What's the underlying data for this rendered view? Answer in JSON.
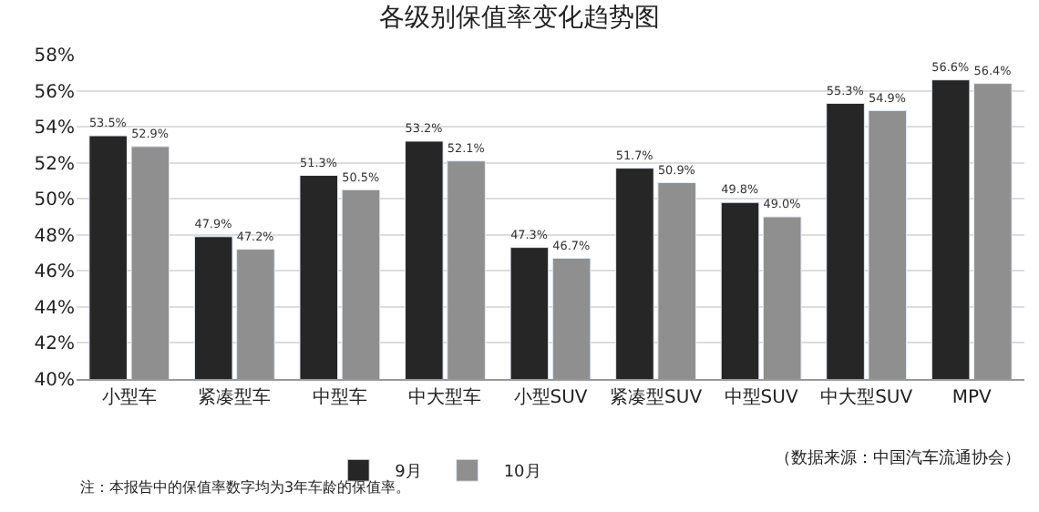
{
  "chart_data": {
    "type": "bar",
    "title": "各级别保值率变化趋势图",
    "categories": [
      "小型车",
      "紧凑型车",
      "中型车",
      "中大型车",
      "小型SUV",
      "紧凑型SUV",
      "中型SUV",
      "中大型SUV",
      "MPV"
    ],
    "series": [
      {
        "name": "9月",
        "color": "#262626",
        "values": [
          53.5,
          47.9,
          51.3,
          53.2,
          47.3,
          51.7,
          49.8,
          55.3,
          56.6
        ],
        "value_labels": [
          "53.5%",
          "47.9%",
          "51.3%",
          "53.2%",
          "47.3%",
          "51.7%",
          "49.8%",
          "55.3%",
          "56.6%"
        ]
      },
      {
        "name": "10月",
        "color": "#8f8f8f",
        "values": [
          52.9,
          47.2,
          50.5,
          52.1,
          46.7,
          50.9,
          49.0,
          54.9,
          56.4
        ],
        "value_labels": [
          "52.9%",
          "47.2%",
          "50.5%",
          "52.1%",
          "46.7%",
          "50.9%",
          "49.0%",
          "54.9%",
          "56.4%"
        ]
      }
    ],
    "ylim": [
      40,
      58
    ],
    "yticks": [
      {
        "value": 40,
        "label": "40%"
      },
      {
        "value": 42,
        "label": "42%"
      },
      {
        "value": 44,
        "label": "44%"
      },
      {
        "value": 46,
        "label": "46%"
      },
      {
        "value": 48,
        "label": "48%"
      },
      {
        "value": 50,
        "label": "50%"
      },
      {
        "value": 52,
        "label": "52%"
      },
      {
        "value": 54,
        "label": "54%"
      },
      {
        "value": 56,
        "label": "56%"
      },
      {
        "value": 58,
        "label": "58%"
      }
    ],
    "grid": "y",
    "legend": "bottom",
    "annotations": [
      "（数据来源：中国汽车流通协会）",
      "注：本报告中的保值率数字均为3年车龄的保值率。"
    ]
  }
}
